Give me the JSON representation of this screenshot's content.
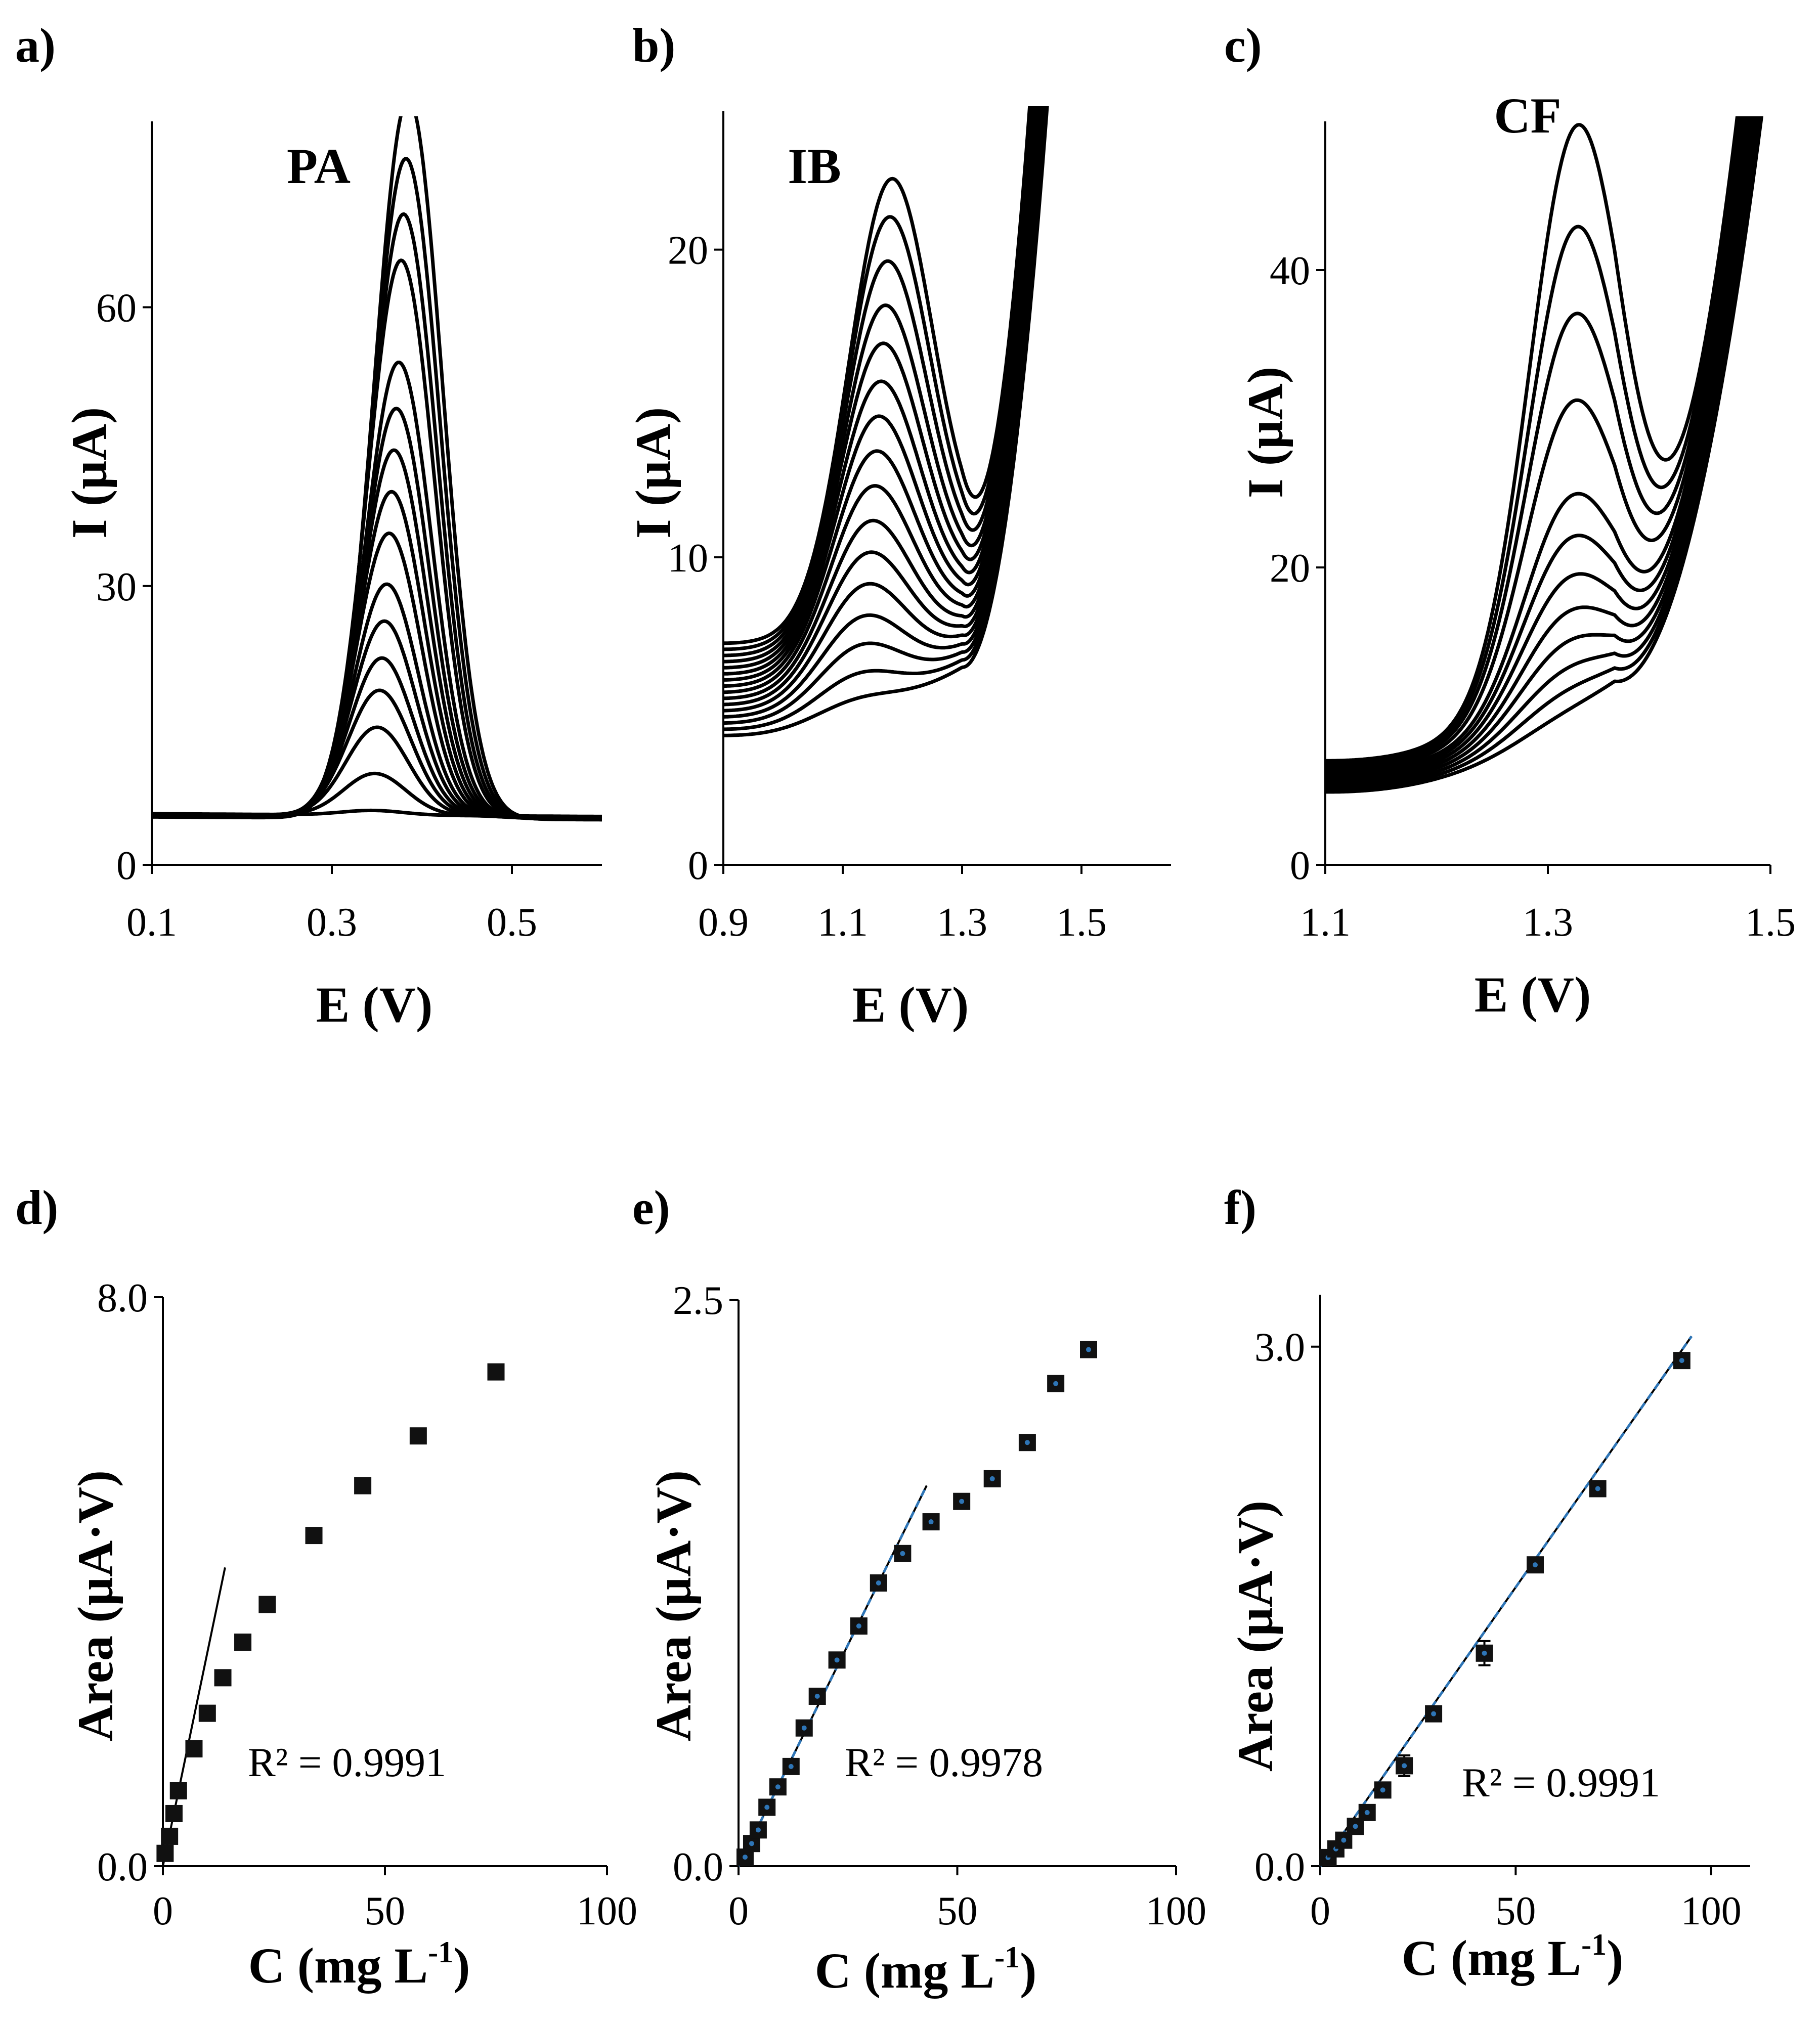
{
  "chart_data": [
    {
      "panel_label": "a)",
      "type": "line",
      "title": "PA",
      "xlabel": "E (V)",
      "ylabel": "I (µA)",
      "xlim": [
        0.1,
        0.6
      ],
      "ylim": [
        0,
        80
      ],
      "xticks": [
        0.1,
        0.3,
        0.5
      ],
      "xtick_labels": [
        "0.1",
        "0.3",
        "0.5"
      ],
      "yticks": [
        0,
        30,
        60
      ],
      "ytick_labels": [
        "0",
        "30",
        "60"
      ],
      "baseline_left": 5.5,
      "baseline_right": 5.2,
      "peak_center_start": 0.345,
      "peak_center_end": 0.385,
      "peak_width": 0.036,
      "peak_heights": [
        0.5,
        4.5,
        9.5,
        13.5,
        17,
        21,
        25,
        30.5,
        35,
        39.5,
        44,
        49,
        60,
        65,
        71,
        77.5
      ]
    },
    {
      "panel_label": "b)",
      "type": "line",
      "title": "IB",
      "xlabel": "E (V)",
      "ylabel": "I (µA)",
      "xlim": [
        0.9,
        1.65
      ],
      "ylim": [
        0,
        24.5
      ],
      "xticks": [
        0.9,
        1.1,
        1.3,
        1.5
      ],
      "xtick_labels": [
        "0.9",
        "1.1",
        "1.3",
        "1.5"
      ],
      "yticks": [
        0,
        10,
        20
      ],
      "ytick_labels": [
        "0",
        "10",
        "20"
      ],
      "baseline_left_min": 4.2,
      "baseline_left_max": 7.2,
      "baseline_right_min": 6.4,
      "baseline_right_max": 9.6,
      "peak_center_start": 1.12,
      "peak_center_end": 1.18,
      "peak_width": 0.07,
      "peak_heights": [
        0.6,
        1.2,
        1.9,
        2.6,
        3.4,
        4.2,
        5.0,
        5.9,
        6.8,
        7.7,
        8.6,
        9.6,
        10.6,
        11.8,
        13.0,
        14.0
      ]
    },
    {
      "panel_label": "c)",
      "type": "line",
      "title": "CF",
      "xlabel": "E (V)",
      "ylabel": "I (µA)",
      "xlim": [
        1.1,
        1.5
      ],
      "ylim": [
        0,
        50
      ],
      "xticks": [
        1.1,
        1.3,
        1.5
      ],
      "xtick_labels": [
        "1.1",
        "1.3",
        "1.5"
      ],
      "yticks": [
        0,
        20,
        40
      ],
      "ytick_labels": [
        "0",
        "20",
        "40"
      ],
      "baseline_left_min": 4.9,
      "baseline_left_max": 7.0,
      "baseline_right_min": 12.0,
      "baseline_right_max": 15.5,
      "peak_center_start": 1.31,
      "peak_center_end": 1.325,
      "peak_width": 0.042,
      "peak_heights": [
        0.7,
        1.8,
        3.0,
        4.5,
        6.2,
        8.2,
        10.5,
        13.0,
        19.0,
        24.5,
        30.0,
        36.5
      ]
    },
    {
      "panel_label": "d)",
      "type": "scatter",
      "xlabel": "C (mg L",
      "xlabel_sup": "-1",
      "xlabel_end": ")",
      "ylabel": "Area (µA·V)",
      "xlim": [
        0,
        100
      ],
      "ylim": [
        0,
        8
      ],
      "xticks": [
        0,
        50,
        100
      ],
      "xtick_labels": [
        "0",
        "50",
        "100"
      ],
      "yticks": [
        0,
        8
      ],
      "ytick_labels": [
        "0.0",
        "8.0"
      ],
      "x": [
        0.5,
        1.5,
        2.5,
        3.5,
        7,
        10,
        13.5,
        18,
        23.5,
        34,
        45,
        57.5,
        75
      ],
      "y": [
        0.18,
        0.42,
        0.74,
        1.06,
        1.65,
        2.15,
        2.65,
        3.15,
        3.68,
        4.65,
        5.35,
        6.05,
        6.95
      ],
      "errors": [
        0.04,
        0.04,
        0.05,
        0.05,
        0.04,
        0.05,
        0.04,
        0.05,
        0.06,
        0.05,
        0.06,
        0.05,
        0.06
      ],
      "fit_x": [
        0,
        14
      ],
      "fit_y": [
        0.0,
        4.2
      ],
      "fit_marked": false,
      "annotation": "R² = 0.9991"
    },
    {
      "panel_label": "e)",
      "type": "scatter",
      "xlabel": "C (mg L",
      "xlabel_sup": "-1",
      "xlabel_end": ")",
      "ylabel": "Area (µA·V)",
      "xlim": [
        0,
        100
      ],
      "ylim": [
        0,
        2.5
      ],
      "xticks": [
        0,
        50,
        100
      ],
      "xtick_labels": [
        "0",
        "50",
        "100"
      ],
      "yticks": [
        0,
        2.5
      ],
      "ytick_labels": [
        "0.0",
        "2.5"
      ],
      "x": [
        1.5,
        3,
        4.5,
        6.5,
        9,
        12,
        15,
        18,
        22.5,
        27.5,
        32,
        37.5,
        44,
        51,
        58,
        66,
        72.5,
        80
      ],
      "y": [
        0.04,
        0.1,
        0.16,
        0.26,
        0.35,
        0.44,
        0.61,
        0.75,
        0.91,
        1.06,
        1.25,
        1.38,
        1.52,
        1.61,
        1.71,
        1.87,
        2.13,
        2.28
      ],
      "errors": [
        0.01,
        0.01,
        0.01,
        0.01,
        0.01,
        0.01,
        0.01,
        0.01,
        0.01,
        0.02,
        0.02,
        0.02,
        0.02,
        0.02,
        0.02,
        0.02,
        0.02,
        0.02
      ],
      "fit_x": [
        0,
        43
      ],
      "fit_y": [
        0.0,
        1.68
      ],
      "fit_marked": true,
      "annotation": "R² = 0.9978"
    },
    {
      "panel_label": "f)",
      "type": "scatter",
      "xlabel": "C (mg L",
      "xlabel_sup": "-1",
      "xlabel_end": ")",
      "ylabel": "Area (µA·V)",
      "xlim": [
        0,
        110
      ],
      "ylim": [
        0,
        3.3
      ],
      "xticks": [
        0,
        50,
        100
      ],
      "xtick_labels": [
        "0",
        "50",
        "100"
      ],
      "yticks": [
        0,
        3.0
      ],
      "ytick_labels": [
        "0.0",
        "3.0"
      ],
      "x": [
        2,
        4,
        6,
        9,
        12,
        16,
        21.5,
        29,
        42,
        55,
        71,
        92.5
      ],
      "y": [
        0.05,
        0.1,
        0.15,
        0.23,
        0.31,
        0.44,
        0.58,
        0.88,
        1.23,
        1.74,
        2.18,
        2.92
      ],
      "errors": [
        0.01,
        0.01,
        0.01,
        0.02,
        0.02,
        0.03,
        0.06,
        0.03,
        0.07,
        0.04,
        0.03,
        0.03
      ],
      "fit_x": [
        0,
        95
      ],
      "fit_y": [
        0.0,
        3.06
      ],
      "fit_marked": true,
      "annotation": "R² = 0.9991"
    }
  ]
}
